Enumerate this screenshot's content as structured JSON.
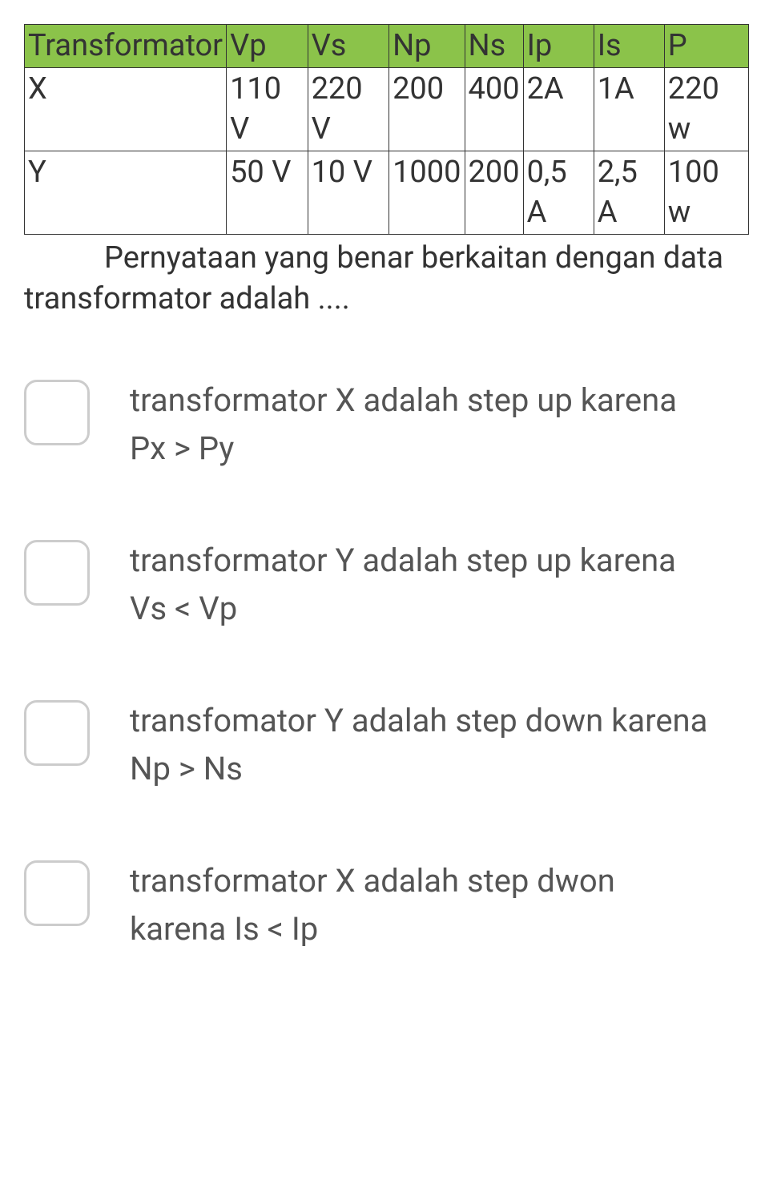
{
  "table": {
    "header_bg": "#8bc34a",
    "border_color": "#333333",
    "columns": [
      "Transformator",
      "Vp",
      "Vs",
      "Np",
      "Ns",
      "Ip",
      "Is",
      "P"
    ],
    "rows": [
      [
        "X",
        "110 V",
        "220 V",
        "200",
        "400",
        "2A",
        "1A",
        "220 w"
      ],
      [
        "Y",
        "50 V",
        "10 V",
        "1000",
        "200",
        "0,5 A",
        "2,5 A",
        "100 w"
      ]
    ]
  },
  "question": "Pernyataan yang benar berkaitan dengan data transformator adalah ....",
  "options": [
    "transformator X adalah step up karena Px > Py",
    "transformator Y adalah step up karena Vs < Vp",
    "transfomator Y adalah step down karena Np > Ns",
    " transformator X adalah step dwon karena Is < Ip"
  ]
}
